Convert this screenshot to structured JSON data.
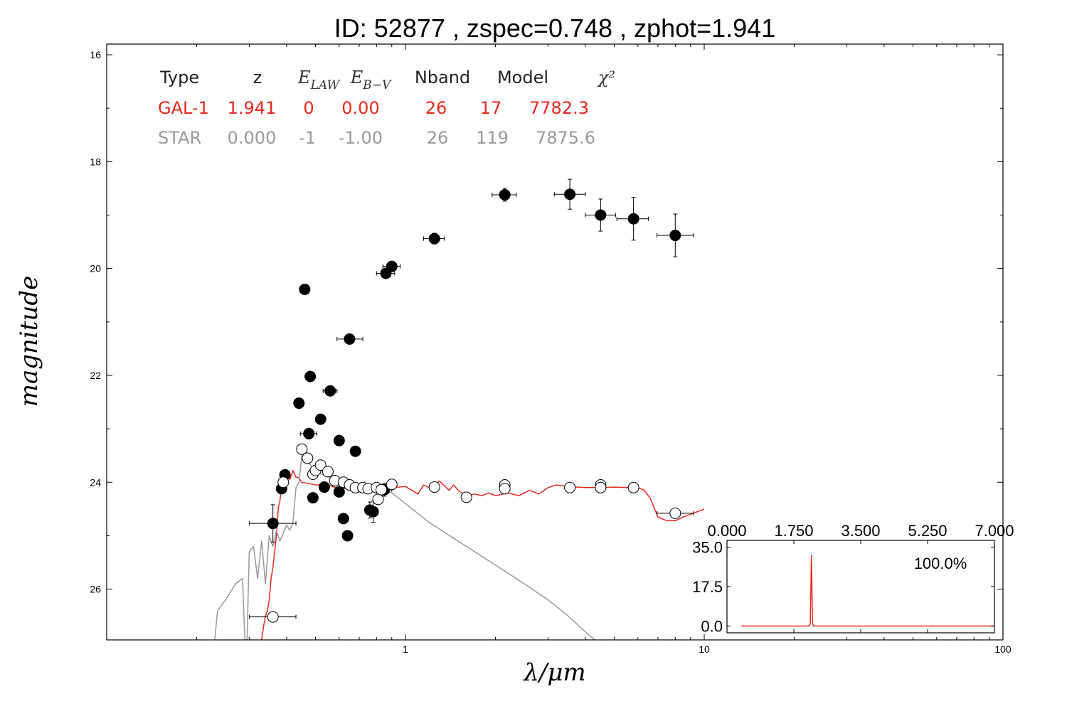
{
  "chart_data": {
    "type": "scatter",
    "title": "ID:  52877 , zspec=0.748 , zphot=1.941",
    "xlabel": "λ/μm",
    "ylabel": "magnitude",
    "xscale": "log",
    "xlim": [
      0.1,
      100
    ],
    "ylim": [
      26.95,
      15.8
    ],
    "x_ticks": [
      {
        "v": 1,
        "label": "1"
      },
      {
        "v": 10,
        "label": "10"
      },
      {
        "v": 100,
        "label": "100"
      }
    ],
    "y_ticks": [
      {
        "v": 16,
        "label": "16"
      },
      {
        "v": 18,
        "label": "18"
      },
      {
        "v": 20,
        "label": "20"
      },
      {
        "v": 22,
        "label": "22"
      },
      {
        "v": 24,
        "label": "24"
      },
      {
        "v": 26,
        "label": "26"
      }
    ],
    "fit_table": {
      "headers": [
        "Type",
        "z",
        "E_LAW",
        "E_B-V",
        "Nband",
        "Model",
        "χ²"
      ],
      "rows": [
        {
          "cells": [
            "GAL-1",
            "1.941",
            "0",
            "0.00",
            "26",
            "17",
            "7782.3"
          ],
          "color": "#e8291c"
        },
        {
          "cells": [
            "STAR",
            "0.000",
            "-1",
            "-1.00",
            "26",
            "119",
            "7875.6"
          ],
          "color": "#999999"
        }
      ]
    },
    "series": [
      {
        "name": "observed",
        "style": "filled",
        "color": "#000000",
        "points": [
          {
            "x": 0.36,
            "y": 24.77,
            "xerr": [
              0.3,
              0.43
            ],
            "yerr": 0.35
          },
          {
            "x": 0.385,
            "y": 24.12,
            "xerr": [
              0.37,
              0.4
            ],
            "yerr": 0.08
          },
          {
            "x": 0.395,
            "y": 23.86
          },
          {
            "x": 0.44,
            "y": 22.52
          },
          {
            "x": 0.46,
            "y": 20.39
          },
          {
            "x": 0.475,
            "y": 23.09,
            "xerr": [
              0.445,
              0.505
            ],
            "yerr": 0.1
          },
          {
            "x": 0.48,
            "y": 22.02
          },
          {
            "x": 0.49,
            "y": 24.29
          },
          {
            "x": 0.52,
            "y": 22.82
          },
          {
            "x": 0.535,
            "y": 24.09
          },
          {
            "x": 0.56,
            "y": 22.29,
            "xerr": [
              0.53,
              0.59
            ],
            "yerr": 0.08
          },
          {
            "x": 0.6,
            "y": 23.22
          },
          {
            "x": 0.6,
            "y": 24.18
          },
          {
            "x": 0.62,
            "y": 24.68
          },
          {
            "x": 0.65,
            "y": 21.32,
            "xerr": [
              0.59,
              0.72
            ],
            "yerr": 0.08
          },
          {
            "x": 0.64,
            "y": 25.0
          },
          {
            "x": 0.68,
            "y": 23.42
          },
          {
            "x": 0.76,
            "y": 24.52,
            "yerr": 0.15
          },
          {
            "x": 0.78,
            "y": 24.55,
            "yerr": 0.2
          },
          {
            "x": 0.85,
            "y": 24.14,
            "xerr": [
              0.8,
              0.9
            ],
            "yerr": 0.12
          },
          {
            "x": 0.86,
            "y": 20.09,
            "xerr": [
              0.8,
              0.92
            ],
            "yerr": 0.08
          },
          {
            "x": 0.9,
            "y": 19.96,
            "xerr": [
              0.84,
              0.96
            ],
            "yerr": 0.08
          },
          {
            "x": 1.25,
            "y": 19.44,
            "xerr": [
              1.15,
              1.35
            ],
            "yerr": 0.1
          },
          {
            "x": 2.15,
            "y": 18.62,
            "xerr": [
              1.95,
              2.35
            ],
            "yerr": 0.12
          },
          {
            "x": 3.55,
            "y": 18.61,
            "xerr": [
              3.15,
              4.0
            ],
            "yerr": 0.28
          },
          {
            "x": 4.5,
            "y": 19.0,
            "xerr": [
              4.0,
              5.05
            ],
            "yerr": 0.3
          },
          {
            "x": 5.8,
            "y": 19.07,
            "xerr": [
              5.1,
              6.5
            ],
            "yerr": 0.4
          },
          {
            "x": 8.0,
            "y": 19.38,
            "xerr": [
              6.95,
              9.2
            ],
            "yerr": 0.4
          }
        ]
      },
      {
        "name": "model",
        "style": "open",
        "color": "#ffffff",
        "points": [
          {
            "x": 0.36,
            "y": 26.52,
            "xerr": [
              0.3,
              0.43
            ]
          },
          {
            "x": 0.39,
            "y": 24.0
          },
          {
            "x": 0.45,
            "y": 23.38
          },
          {
            "x": 0.47,
            "y": 23.55
          },
          {
            "x": 0.49,
            "y": 23.85
          },
          {
            "x": 0.5,
            "y": 23.78
          },
          {
            "x": 0.52,
            "y": 23.68
          },
          {
            "x": 0.55,
            "y": 23.8
          },
          {
            "x": 0.58,
            "y": 23.97
          },
          {
            "x": 0.62,
            "y": 24.0
          },
          {
            "x": 0.65,
            "y": 24.05
          },
          {
            "x": 0.68,
            "y": 24.1
          },
          {
            "x": 0.72,
            "y": 24.1
          },
          {
            "x": 0.75,
            "y": 24.12
          },
          {
            "x": 0.8,
            "y": 24.1
          },
          {
            "x": 0.81,
            "y": 24.32
          },
          {
            "x": 0.83,
            "y": 24.14
          },
          {
            "x": 0.9,
            "y": 24.04
          },
          {
            "x": 1.25,
            "y": 24.09
          },
          {
            "x": 1.6,
            "y": 24.28
          },
          {
            "x": 2.15,
            "y": 24.05
          },
          {
            "x": 2.15,
            "y": 24.12
          },
          {
            "x": 3.55,
            "y": 24.1
          },
          {
            "x": 4.5,
            "y": 24.05
          },
          {
            "x": 4.5,
            "y": 24.1
          },
          {
            "x": 5.8,
            "y": 24.1
          },
          {
            "x": 8.0,
            "y": 24.58,
            "xerr": [
              6.95,
              9.2
            ]
          }
        ]
      }
    ],
    "curves": [
      {
        "name": "galaxy",
        "color": "#e8291c",
        "points": [
          [
            0.33,
            26.95
          ],
          [
            0.335,
            26.7
          ],
          [
            0.34,
            26.5
          ],
          [
            0.345,
            26.4
          ],
          [
            0.35,
            26.2
          ],
          [
            0.355,
            25.8
          ],
          [
            0.36,
            25.6
          ],
          [
            0.365,
            25.3
          ],
          [
            0.37,
            25.0
          ],
          [
            0.375,
            24.5
          ],
          [
            0.38,
            24.35
          ],
          [
            0.385,
            24.05
          ],
          [
            0.39,
            23.85
          ],
          [
            0.4,
            23.85
          ],
          [
            0.41,
            23.95
          ],
          [
            0.42,
            23.78
          ],
          [
            0.43,
            23.9
          ],
          [
            0.44,
            23.92
          ],
          [
            0.45,
            24.0
          ],
          [
            0.47,
            24.02
          ],
          [
            0.5,
            24.05
          ],
          [
            0.55,
            24.05
          ],
          [
            0.6,
            24.12
          ],
          [
            0.65,
            24.12
          ],
          [
            0.7,
            24.13
          ],
          [
            0.75,
            24.14
          ],
          [
            0.8,
            24.14
          ],
          [
            0.85,
            24.13
          ],
          [
            0.9,
            24.1
          ],
          [
            1.0,
            24.08
          ],
          [
            1.05,
            24.15
          ],
          [
            1.1,
            24.22
          ],
          [
            1.15,
            24.05
          ],
          [
            1.2,
            24.1
          ],
          [
            1.3,
            23.98
          ],
          [
            1.4,
            24.15
          ],
          [
            1.45,
            24.05
          ],
          [
            1.5,
            24.15
          ],
          [
            1.6,
            24.25
          ],
          [
            1.7,
            24.22
          ],
          [
            1.8,
            24.25
          ],
          [
            1.9,
            24.2
          ],
          [
            2.0,
            24.25
          ],
          [
            2.2,
            24.2
          ],
          [
            2.4,
            24.25
          ],
          [
            2.6,
            24.15
          ],
          [
            2.8,
            24.22
          ],
          [
            3.0,
            24.1
          ],
          [
            3.2,
            24.05
          ],
          [
            3.5,
            24.08
          ],
          [
            4.0,
            24.1
          ],
          [
            4.5,
            24.1
          ],
          [
            5.0,
            24.09
          ],
          [
            5.5,
            24.1
          ],
          [
            6.0,
            24.1
          ],
          [
            6.3,
            24.15
          ],
          [
            6.6,
            24.3
          ],
          [
            7.0,
            24.65
          ],
          [
            7.5,
            24.72
          ],
          [
            8.0,
            24.72
          ],
          [
            8.5,
            24.65
          ],
          [
            9.0,
            24.6
          ],
          [
            10.0,
            24.5
          ]
        ]
      },
      {
        "name": "star",
        "color": "#999999",
        "points": [
          [
            0.23,
            26.95
          ],
          [
            0.235,
            26.4
          ],
          [
            0.25,
            26.2
          ],
          [
            0.27,
            25.9
          ],
          [
            0.285,
            25.8
          ],
          [
            0.29,
            26.95
          ],
          [
            0.295,
            26.95
          ],
          [
            0.3,
            25.3
          ],
          [
            0.31,
            25.2
          ],
          [
            0.32,
            25.8
          ],
          [
            0.33,
            25.1
          ],
          [
            0.34,
            25.9
          ],
          [
            0.35,
            25.0
          ],
          [
            0.36,
            25.2
          ],
          [
            0.37,
            24.9
          ],
          [
            0.38,
            25.1
          ],
          [
            0.39,
            24.95
          ],
          [
            0.4,
            24.8
          ],
          [
            0.41,
            24.9
          ],
          [
            0.42,
            24.75
          ],
          [
            0.43,
            24.1
          ],
          [
            0.44,
            24.0
          ],
          [
            0.45,
            23.5
          ],
          [
            0.47,
            23.6
          ],
          [
            0.5,
            23.8
          ],
          [
            0.55,
            23.9
          ],
          [
            0.6,
            23.95
          ],
          [
            0.7,
            24.05
          ],
          [
            0.8,
            24.1
          ],
          [
            0.9,
            24.2
          ],
          [
            1.0,
            24.4
          ],
          [
            1.2,
            24.75
          ],
          [
            1.5,
            25.1
          ],
          [
            2.0,
            25.55
          ],
          [
            2.5,
            25.9
          ],
          [
            3.0,
            26.2
          ],
          [
            3.5,
            26.5
          ],
          [
            4.0,
            26.8
          ],
          [
            4.3,
            26.95
          ]
        ]
      }
    ],
    "pdz_inset": {
      "type": "line",
      "percent_label": "100.0%",
      "x_ticks": [
        "0.000",
        "1.750",
        "3.500",
        "5.250",
        "7.000"
      ],
      "y_ticks": [
        "0.0",
        "17.5",
        "35.0"
      ],
      "xlim": [
        0,
        7
      ],
      "ylim": [
        -3,
        38
      ],
      "color": "#e8291c",
      "points": [
        [
          0.0,
          0.0
        ],
        [
          1.88,
          0.0
        ],
        [
          1.91,
          1.0
        ],
        [
          1.94,
          31.5
        ],
        [
          1.97,
          1.0
        ],
        [
          2.0,
          0.0
        ],
        [
          7.0,
          0.0
        ]
      ]
    }
  }
}
